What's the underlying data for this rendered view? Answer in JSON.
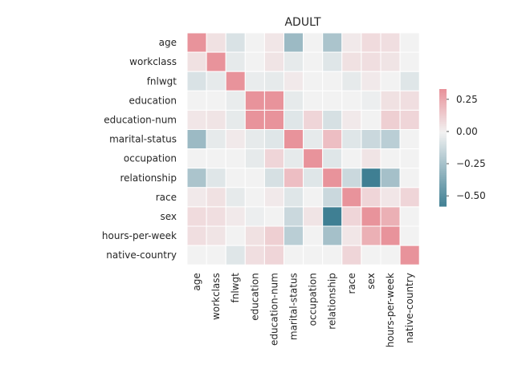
{
  "chart_data": {
    "type": "heatmap",
    "title": "ADULT",
    "xlabel": "",
    "ylabel": "",
    "labels": [
      "age",
      "workclass",
      "fnlwgt",
      "education",
      "education-num",
      "marital-status",
      "occupation",
      "relationship",
      "race",
      "sex",
      "hours-per-week",
      "native-country"
    ],
    "matrix": [
      [
        0.33,
        0.06,
        -0.08,
        0.0,
        0.04,
        -0.28,
        0.0,
        -0.23,
        0.03,
        0.08,
        0.07,
        0.0
      ],
      [
        0.06,
        0.33,
        -0.04,
        0.0,
        0.05,
        -0.04,
        0.0,
        -0.06,
        0.06,
        0.07,
        0.05,
        0.0
      ],
      [
        -0.08,
        -0.04,
        0.33,
        -0.03,
        -0.04,
        0.03,
        0.0,
        0.0,
        -0.04,
        0.03,
        0.0,
        -0.06
      ],
      [
        0.0,
        0.0,
        -0.03,
        0.33,
        0.33,
        -0.04,
        0.0,
        0.0,
        0.0,
        -0.02,
        0.06,
        0.07
      ],
      [
        0.04,
        0.05,
        -0.04,
        0.33,
        0.33,
        -0.06,
        0.1,
        -0.09,
        0.03,
        0.0,
        0.12,
        0.1
      ],
      [
        -0.28,
        -0.04,
        0.03,
        -0.04,
        -0.06,
        0.33,
        -0.04,
        0.18,
        -0.06,
        -0.13,
        -0.18,
        0.0
      ],
      [
        0.0,
        0.0,
        0.0,
        -0.04,
        0.1,
        -0.04,
        0.33,
        -0.06,
        0.0,
        0.05,
        0.0,
        0.0
      ],
      [
        -0.23,
        -0.06,
        0.0,
        0.0,
        -0.09,
        0.18,
        -0.06,
        0.33,
        -0.13,
        -0.58,
        -0.25,
        0.0
      ],
      [
        0.03,
        0.06,
        -0.04,
        0.0,
        0.03,
        -0.06,
        0.0,
        -0.13,
        0.33,
        0.1,
        0.04,
        0.1
      ],
      [
        0.08,
        0.07,
        0.03,
        -0.02,
        0.0,
        -0.13,
        0.05,
        -0.58,
        0.1,
        0.33,
        0.23,
        0.0
      ],
      [
        0.07,
        0.05,
        0.0,
        0.06,
        0.12,
        -0.18,
        0.0,
        -0.25,
        0.04,
        0.23,
        0.33,
        0.0
      ],
      [
        0.0,
        0.0,
        -0.06,
        0.07,
        0.1,
        0.0,
        0.0,
        0.0,
        0.1,
        0.0,
        0.0,
        0.33
      ]
    ],
    "vmin": -0.58,
    "vmax": 0.33,
    "colorbar_ticks": [
      0.25,
      0.0,
      -0.25,
      -0.5
    ],
    "colorbar_tick_labels": [
      "0.25",
      "0.00",
      "−0.25",
      "−0.50"
    ],
    "colors": {
      "negative": "#3f7f93",
      "neutral": "#f2f2f2",
      "positive": "#e8939b",
      "grid": "#ffffff"
    }
  }
}
